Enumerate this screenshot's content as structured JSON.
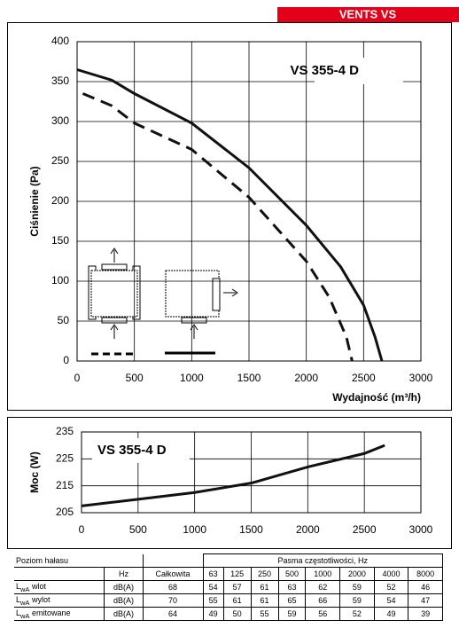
{
  "header": {
    "title": "VENTS VS"
  },
  "chart_data": [
    {
      "type": "line",
      "annotation": "VS 355-4 D",
      "x_label": "Wydajność (m³/h)",
      "y_label": "Ciśnienie (Pa)",
      "xlim": [
        0,
        3000
      ],
      "xticks": [
        0,
        500,
        1000,
        1500,
        2000,
        2500,
        3000
      ],
      "ylim": [
        0,
        400
      ],
      "yticks": [
        0,
        50,
        100,
        150,
        200,
        250,
        300,
        350,
        400
      ],
      "grid": true,
      "series": [
        {
          "color": "#111111",
          "dashed": false,
          "x": [
            0,
            300,
            500,
            1000,
            1500,
            2000,
            2300,
            2500,
            2600,
            2660
          ],
          "values": [
            365,
            352,
            335,
            298,
            242,
            170,
            118,
            70,
            30,
            0
          ]
        },
        {
          "color": "#111111",
          "dashed": true,
          "x": [
            50,
            300,
            500,
            1000,
            1500,
            2000,
            2200,
            2350,
            2400
          ],
          "values": [
            335,
            320,
            298,
            265,
            205,
            125,
            80,
            30,
            0
          ]
        }
      ]
    },
    {
      "type": "line",
      "annotation": "VS 355-4 D",
      "y_label": "Moc (W)",
      "xlim": [
        0,
        3000
      ],
      "xticks": [
        0,
        500,
        1000,
        1500,
        2000,
        2500,
        3000
      ],
      "ylim": [
        205,
        235
      ],
      "yticks": [
        205,
        215,
        225,
        235
      ],
      "grid": true,
      "series": [
        {
          "color": "#111111",
          "dashed": false,
          "x": [
            0,
            500,
            1000,
            1500,
            2000,
            2500,
            2680
          ],
          "values": [
            207.5,
            210,
            212.5,
            216,
            222,
            227,
            230
          ]
        }
      ]
    }
  ],
  "table": {
    "title": "Poziom hałasu",
    "band_title": "Pasma częstotliwości, Hz",
    "unit_header": "Hz",
    "columns": [
      "Całkowita",
      "63",
      "125",
      "250",
      "500",
      "1000",
      "2000",
      "4000",
      "8000"
    ],
    "rows": [
      {
        "symbol": "L",
        "sub": "wA",
        "name": "wlot",
        "unit": "dB(A)",
        "cells": [
          68,
          54,
          57,
          61,
          63,
          62,
          59,
          52,
          46
        ]
      },
      {
        "symbol": "L",
        "sub": "wA",
        "name": "wylot",
        "unit": "dB(A)",
        "cells": [
          70,
          55,
          61,
          61,
          65,
          66,
          59,
          54,
          47
        ]
      },
      {
        "symbol": "L",
        "sub": "wA",
        "name": "emitowane",
        "unit": "dB(A)",
        "cells": [
          64,
          49,
          50,
          55,
          59,
          56,
          52,
          49,
          39
        ]
      }
    ]
  }
}
